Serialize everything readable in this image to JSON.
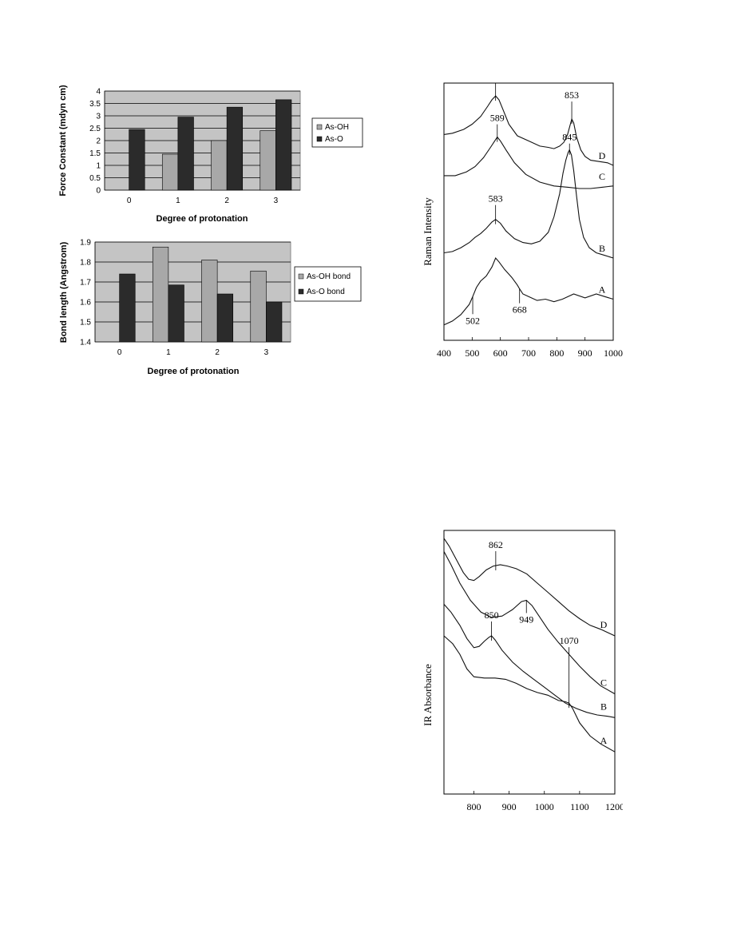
{
  "colors": {
    "plot_bg": "#c4c4c4",
    "grid": "#000000",
    "bar_light": "#a8a8a8",
    "bar_dark": "#2b2b2b",
    "outer_bg": "#ffffff",
    "line": "#111111"
  },
  "chart_data": [
    {
      "type": "bar",
      "ylabel": "Force Constant (mdyn cm)",
      "xlabel": "Degree of protonation",
      "categories": [
        "0",
        "1",
        "2",
        "3"
      ],
      "ylim": [
        0,
        4
      ],
      "yticks": [
        "0",
        "0.5",
        "1",
        "1.5",
        "2",
        "2.5",
        "3",
        "3.5",
        "4"
      ],
      "grid": true,
      "legend_position": "right",
      "series": [
        {
          "name": "As-OH",
          "values": [
            null,
            1.45,
            2.0,
            2.4
          ],
          "color_key": "bar_light"
        },
        {
          "name": "As-O",
          "values": [
            2.45,
            2.95,
            3.35,
            3.65
          ],
          "color_key": "bar_dark"
        }
      ]
    },
    {
      "type": "bar",
      "ylabel": "Bond length (Angstrom)",
      "xlabel": "Degree of protonation",
      "categories": [
        "0",
        "1",
        "2",
        "3"
      ],
      "ylim": [
        1.4,
        1.9
      ],
      "yticks": [
        "1.4",
        "1.5",
        "1.6",
        "1.7",
        "1.8",
        "1.9"
      ],
      "grid": true,
      "legend_position": "right",
      "series": [
        {
          "name": "As-OH bond",
          "values": [
            null,
            1.875,
            1.81,
            1.755
          ],
          "color_key": "bar_light"
        },
        {
          "name": "As-O bond",
          "values": [
            1.74,
            1.685,
            1.64,
            1.6
          ],
          "color_key": "bar_dark"
        }
      ]
    },
    {
      "type": "line",
      "ylabel": "Raman Intensity",
      "xlim": [
        400,
        1000
      ],
      "xticks": [
        "400",
        "500",
        "600",
        "700",
        "800",
        "900",
        "1000"
      ],
      "series": [
        {
          "name": "D",
          "x": [
            400,
            430,
            470,
            500,
            530,
            555,
            570,
            583,
            595,
            610,
            630,
            660,
            700,
            740,
            770,
            790,
            810,
            825,
            838,
            848,
            853,
            860,
            870,
            885,
            900,
            920,
            950,
            980,
            1000
          ],
          "y": [
            0.8,
            0.805,
            0.82,
            0.84,
            0.87,
            0.91,
            0.935,
            0.95,
            0.935,
            0.895,
            0.84,
            0.795,
            0.775,
            0.755,
            0.75,
            0.745,
            0.755,
            0.77,
            0.8,
            0.84,
            0.86,
            0.845,
            0.79,
            0.74,
            0.715,
            0.7,
            0.695,
            0.69,
            0.68
          ]
        },
        {
          "name": "C",
          "x": [
            400,
            440,
            480,
            510,
            540,
            565,
            580,
            589,
            600,
            620,
            650,
            690,
            740,
            790,
            840,
            880,
            920,
            960,
            1000
          ],
          "y": [
            0.64,
            0.64,
            0.655,
            0.675,
            0.71,
            0.75,
            0.775,
            0.79,
            0.775,
            0.74,
            0.69,
            0.645,
            0.615,
            0.6,
            0.595,
            0.59,
            0.59,
            0.595,
            0.6
          ]
        },
        {
          "name": "B",
          "x": [
            400,
            430,
            460,
            490,
            510,
            530,
            550,
            570,
            583,
            600,
            620,
            650,
            680,
            710,
            740,
            770,
            790,
            810,
            822,
            832,
            840,
            845,
            852,
            860,
            870,
            880,
            895,
            915,
            940,
            970,
            1000
          ],
          "y": [
            0.34,
            0.345,
            0.36,
            0.38,
            0.4,
            0.415,
            0.435,
            0.46,
            0.47,
            0.455,
            0.425,
            0.395,
            0.38,
            0.375,
            0.385,
            0.42,
            0.48,
            0.57,
            0.65,
            0.7,
            0.73,
            0.74,
            0.72,
            0.66,
            0.56,
            0.47,
            0.4,
            0.36,
            0.34,
            0.33,
            0.32
          ]
        },
        {
          "name": "A",
          "x": [
            400,
            430,
            460,
            490,
            502,
            515,
            530,
            550,
            570,
            583,
            595,
            615,
            640,
            660,
            668,
            680,
            700,
            730,
            760,
            790,
            820,
            860,
            900,
            940,
            970,
            1000
          ],
          "y": [
            0.06,
            0.075,
            0.1,
            0.14,
            0.17,
            0.205,
            0.23,
            0.25,
            0.285,
            0.32,
            0.305,
            0.275,
            0.245,
            0.215,
            0.2,
            0.18,
            0.17,
            0.155,
            0.16,
            0.15,
            0.16,
            0.18,
            0.165,
            0.18,
            0.17,
            0.16
          ]
        }
      ],
      "annotations": [
        {
          "label": "583",
          "x": 583,
          "series": "D"
        },
        {
          "label": "853",
          "x": 853,
          "series": "D"
        },
        {
          "label": "589",
          "x": 589,
          "series": "C"
        },
        {
          "label": "583",
          "x": 583,
          "series": "B"
        },
        {
          "label": "845",
          "x": 845,
          "series": "B"
        },
        {
          "label": "502",
          "x": 502,
          "series": "A"
        },
        {
          "label": "668",
          "x": 668,
          "series": "A"
        }
      ]
    },
    {
      "type": "line",
      "ylabel": "IR Absorbance",
      "xlim": [
        715,
        1200
      ],
      "xticks": [
        "800",
        "900",
        "1000",
        "1100",
        "1200"
      ],
      "series": [
        {
          "name": "D",
          "x": [
            715,
            730,
            750,
            770,
            785,
            800,
            815,
            835,
            855,
            875,
            895,
            920,
            950,
            980,
            1010,
            1040,
            1070,
            1100,
            1130,
            1160,
            1200
          ],
          "y": [
            0.97,
            0.94,
            0.89,
            0.84,
            0.815,
            0.81,
            0.825,
            0.85,
            0.865,
            0.87,
            0.865,
            0.855,
            0.835,
            0.8,
            0.765,
            0.73,
            0.695,
            0.665,
            0.64,
            0.625,
            0.6
          ]
        },
        {
          "name": "C",
          "x": [
            715,
            735,
            760,
            790,
            820,
            850,
            880,
            910,
            935,
            949,
            965,
            985,
            1010,
            1040,
            1070,
            1100,
            1130,
            1160,
            1200
          ],
          "y": [
            0.92,
            0.87,
            0.8,
            0.735,
            0.69,
            0.67,
            0.675,
            0.7,
            0.73,
            0.735,
            0.715,
            0.675,
            0.625,
            0.575,
            0.53,
            0.485,
            0.445,
            0.41,
            0.38
          ]
        },
        {
          "name": "B",
          "x": [
            715,
            735,
            760,
            780,
            800,
            815,
            830,
            843,
            850,
            860,
            880,
            910,
            940,
            970,
            1000,
            1030,
            1060,
            1090,
            1120,
            1150,
            1180,
            1200
          ],
          "y": [
            0.72,
            0.69,
            0.64,
            0.59,
            0.555,
            0.56,
            0.58,
            0.595,
            0.6,
            0.585,
            0.545,
            0.5,
            0.465,
            0.435,
            0.405,
            0.375,
            0.345,
            0.325,
            0.31,
            0.3,
            0.295,
            0.29
          ]
        },
        {
          "name": "A",
          "x": [
            715,
            740,
            760,
            780,
            800,
            830,
            860,
            890,
            920,
            950,
            980,
            1010,
            1040,
            1060,
            1070,
            1080,
            1100,
            1130,
            1160,
            1200
          ],
          "y": [
            0.6,
            0.57,
            0.53,
            0.475,
            0.445,
            0.44,
            0.44,
            0.435,
            0.42,
            0.4,
            0.385,
            0.375,
            0.355,
            0.35,
            0.345,
            0.325,
            0.27,
            0.22,
            0.19,
            0.16
          ]
        }
      ],
      "annotations": [
        {
          "label": "862",
          "x": 862,
          "series": "D"
        },
        {
          "label": "949",
          "x": 949,
          "series": "C"
        },
        {
          "label": "850",
          "x": 850,
          "series": "B"
        },
        {
          "label": "1070",
          "x": 1070,
          "series": "A"
        }
      ]
    }
  ]
}
